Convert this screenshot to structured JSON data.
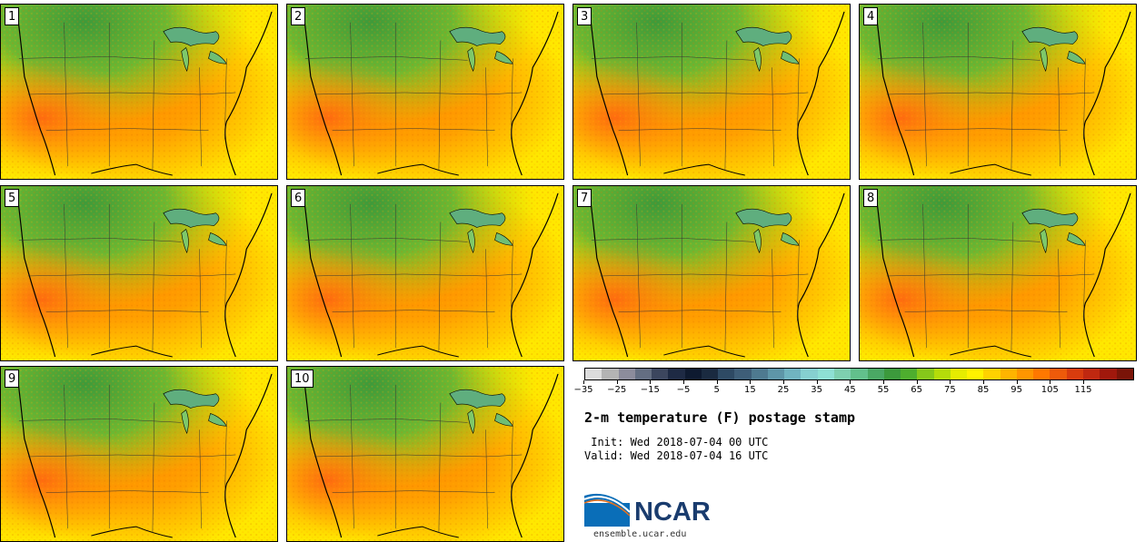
{
  "panels": [
    "1",
    "2",
    "3",
    "4",
    "5",
    "6",
    "7",
    "8",
    "9",
    "10"
  ],
  "colorbar": {
    "colors": [
      "#dcdcdc",
      "#b4b4b4",
      "#8c8c9c",
      "#646e82",
      "#3c465e",
      "#1e2a44",
      "#0e1a30",
      "#1a2a40",
      "#2e4a64",
      "#3e5e78",
      "#4e7a90",
      "#5e96a8",
      "#70b4c0",
      "#86d0d0",
      "#8ee0d4",
      "#7ed0b0",
      "#62c08c",
      "#4aa864",
      "#3c9a3c",
      "#4eae2e",
      "#86c81a",
      "#b4dc0a",
      "#e6ec00",
      "#fff200",
      "#ffd200",
      "#ffb400",
      "#ff9600",
      "#ff7800",
      "#ee5a0a",
      "#d83c0e",
      "#c02810",
      "#a0180c",
      "#7a1408"
    ],
    "ticks": [
      "−35",
      "−25",
      "−15",
      "−5",
      "5",
      "15",
      "25",
      "35",
      "45",
      "55",
      "65",
      "75",
      "85",
      "95",
      "105",
      "115"
    ]
  },
  "title": "2-m temperature (F) postage stamp",
  "init": " Init: Wed 2018-07-04 00 UTC",
  "valid": "Valid: Wed 2018-07-04 16 UTC",
  "logo_text": "NCAR",
  "url": "ensemble.ucar.edu"
}
